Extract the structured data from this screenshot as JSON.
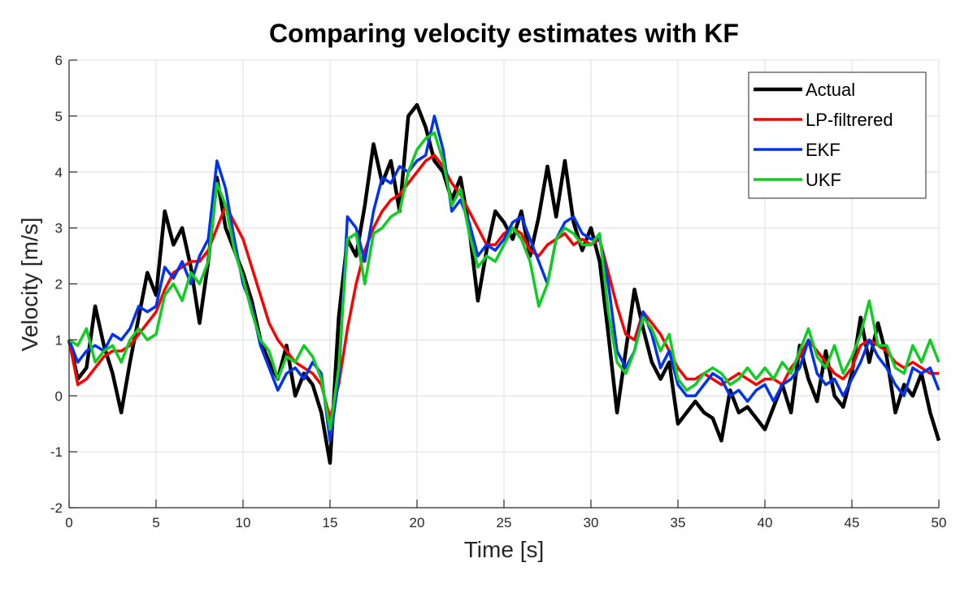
{
  "chart_data": {
    "type": "line",
    "title": "Comparing velocity estimates with KF",
    "xlabel": "Time [s]",
    "ylabel": "Velocity [m/s]",
    "xlim": [
      0,
      50
    ],
    "ylim": [
      -2,
      6
    ],
    "xticks": [
      0,
      5,
      10,
      15,
      20,
      25,
      30,
      35,
      40,
      45,
      50
    ],
    "yticks": [
      -2,
      -1,
      0,
      1,
      2,
      3,
      4,
      5,
      6
    ],
    "xtick_labels": [
      "0",
      "5",
      "10",
      "15",
      "20",
      "25",
      "30",
      "35",
      "40",
      "45",
      "50"
    ],
    "ytick_labels": [
      "-2",
      "-1",
      "0",
      "1",
      "2",
      "3",
      "4",
      "5",
      "6"
    ],
    "grid": true,
    "legend_position": "top-right",
    "x": [
      0,
      0.5,
      1,
      1.5,
      2,
      2.5,
      3,
      3.5,
      4,
      4.5,
      5,
      5.5,
      6,
      6.5,
      7,
      7.5,
      8,
      8.5,
      9,
      9.5,
      10,
      10.5,
      11,
      11.5,
      12,
      12.5,
      13,
      13.5,
      14,
      14.5,
      15,
      15.5,
      16,
      16.5,
      17,
      17.5,
      18,
      18.5,
      19,
      19.5,
      20,
      20.5,
      21,
      21.5,
      22,
      22.5,
      23,
      23.5,
      24,
      24.5,
      25,
      25.5,
      26,
      26.5,
      27,
      27.5,
      28,
      28.5,
      29,
      29.5,
      30,
      30.5,
      31,
      31.5,
      32,
      32.5,
      33,
      33.5,
      34,
      34.5,
      35,
      35.5,
      36,
      36.5,
      37,
      37.5,
      38,
      38.5,
      39,
      39.5,
      40,
      40.5,
      41,
      41.5,
      42,
      42.5,
      43,
      43.5,
      44,
      44.5,
      45,
      45.5,
      46,
      46.5,
      47,
      47.5,
      48,
      48.5,
      49,
      49.5,
      50
    ],
    "series": [
      {
        "name": "Actual",
        "color": "#000000",
        "values": [
          1.0,
          0.3,
          0.5,
          1.6,
          0.9,
          0.4,
          -0.3,
          0.6,
          1.4,
          2.2,
          1.8,
          3.3,
          2.7,
          3.0,
          2.3,
          1.3,
          2.4,
          3.9,
          3.0,
          2.6,
          2.2,
          1.7,
          1.0,
          0.6,
          0.3,
          0.9,
          0.0,
          0.4,
          0.2,
          -0.3,
          -1.2,
          1.4,
          2.8,
          2.5,
          3.4,
          4.5,
          3.8,
          4.2,
          3.3,
          5.0,
          5.2,
          4.8,
          4.2,
          4.0,
          3.5,
          3.9,
          3.0,
          1.7,
          2.6,
          3.3,
          3.1,
          2.8,
          3.3,
          2.5,
          3.2,
          4.1,
          3.2,
          4.2,
          3.1,
          2.6,
          3.0,
          2.4,
          1.1,
          -0.3,
          0.8,
          1.9,
          1.2,
          0.6,
          0.3,
          0.6,
          -0.5,
          -0.3,
          -0.1,
          -0.3,
          -0.4,
          -0.8,
          0.1,
          -0.3,
          -0.2,
          -0.4,
          -0.6,
          -0.2,
          0.2,
          -0.3,
          0.9,
          0.3,
          -0.1,
          0.8,
          0.0,
          -0.2,
          0.4,
          1.4,
          0.6,
          1.3,
          0.7,
          -0.3,
          0.2,
          0.0,
          0.4,
          -0.3,
          -0.8
        ]
      },
      {
        "name": "LP-filtrered",
        "color": "#ff0000",
        "values": [
          1.0,
          0.2,
          0.3,
          0.5,
          0.7,
          0.8,
          0.8,
          0.9,
          1.1,
          1.3,
          1.5,
          1.9,
          2.2,
          2.3,
          2.4,
          2.4,
          2.6,
          3.0,
          3.4,
          3.1,
          2.8,
          2.3,
          1.8,
          1.3,
          1.0,
          0.8,
          0.6,
          0.5,
          0.4,
          0.2,
          -0.4,
          0.2,
          1.2,
          2.0,
          2.6,
          3.0,
          3.3,
          3.5,
          3.6,
          3.8,
          4.0,
          4.2,
          4.3,
          4.1,
          3.8,
          3.6,
          3.3,
          3.0,
          2.7,
          2.7,
          2.9,
          3.0,
          2.9,
          2.6,
          2.5,
          2.7,
          2.8,
          2.9,
          2.7,
          2.8,
          2.7,
          2.8,
          2.2,
          1.6,
          1.1,
          1.0,
          1.5,
          1.3,
          1.1,
          0.8,
          0.5,
          0.3,
          0.3,
          0.4,
          0.3,
          0.2,
          0.3,
          0.4,
          0.3,
          0.2,
          0.3,
          0.3,
          0.2,
          0.5,
          0.7,
          1.0,
          0.8,
          0.6,
          0.4,
          0.3,
          0.5,
          0.9,
          1.0,
          0.9,
          0.8,
          0.6,
          0.5,
          0.6,
          0.5,
          0.4,
          0.4
        ]
      },
      {
        "name": "EKF",
        "color": "#0033ee",
        "values": [
          1.0,
          0.6,
          0.8,
          0.9,
          0.8,
          1.1,
          1.0,
          1.2,
          1.6,
          1.5,
          1.6,
          2.3,
          2.1,
          2.4,
          2.0,
          2.5,
          2.8,
          4.2,
          3.7,
          2.8,
          2.0,
          1.6,
          0.9,
          0.5,
          0.1,
          0.4,
          0.5,
          0.3,
          0.6,
          0.4,
          -0.8,
          0.3,
          3.2,
          3.0,
          2.4,
          3.3,
          3.9,
          3.8,
          4.1,
          4.0,
          4.2,
          4.3,
          5.0,
          4.4,
          3.3,
          3.5,
          3.1,
          2.5,
          2.7,
          2.6,
          2.8,
          3.1,
          3.2,
          2.8,
          2.4,
          2.0,
          2.8,
          3.1,
          3.2,
          2.9,
          2.8,
          2.8,
          2.0,
          0.8,
          0.5,
          0.8,
          1.5,
          1.1,
          0.5,
          0.8,
          0.2,
          0.0,
          0.0,
          0.2,
          0.4,
          0.3,
          0.0,
          0.1,
          -0.1,
          0.1,
          0.2,
          -0.1,
          0.2,
          0.3,
          0.5,
          1.0,
          0.4,
          0.2,
          0.3,
          0.0,
          0.3,
          0.6,
          1.0,
          0.7,
          0.5,
          0.2,
          0.0,
          0.5,
          0.4,
          0.5,
          0.1
        ]
      },
      {
        "name": "UKF",
        "color": "#11cc22",
        "values": [
          1.0,
          0.9,
          1.2,
          0.6,
          0.8,
          0.9,
          0.6,
          1.0,
          1.2,
          1.0,
          1.1,
          1.8,
          2.0,
          1.7,
          2.2,
          2.0,
          2.4,
          3.8,
          3.4,
          2.6,
          2.1,
          1.5,
          1.0,
          0.8,
          0.3,
          0.7,
          0.6,
          0.9,
          0.7,
          0.3,
          -0.6,
          0.5,
          2.8,
          2.9,
          2.0,
          2.9,
          3.0,
          3.2,
          3.3,
          4.0,
          4.4,
          4.6,
          4.7,
          4.2,
          3.4,
          3.7,
          2.9,
          2.3,
          2.5,
          2.4,
          2.7,
          3.0,
          2.8,
          2.4,
          1.6,
          2.0,
          2.8,
          3.0,
          2.9,
          2.7,
          2.7,
          2.9,
          1.5,
          0.6,
          0.4,
          0.8,
          1.4,
          1.2,
          0.8,
          1.1,
          0.3,
          0.1,
          0.2,
          0.4,
          0.5,
          0.4,
          0.2,
          0.3,
          0.5,
          0.3,
          0.5,
          0.3,
          0.6,
          0.4,
          0.8,
          1.2,
          0.7,
          0.5,
          0.9,
          0.4,
          0.7,
          1.1,
          1.7,
          0.9,
          0.9,
          0.5,
          0.4,
          0.9,
          0.6,
          1.0,
          0.6
        ]
      }
    ]
  }
}
